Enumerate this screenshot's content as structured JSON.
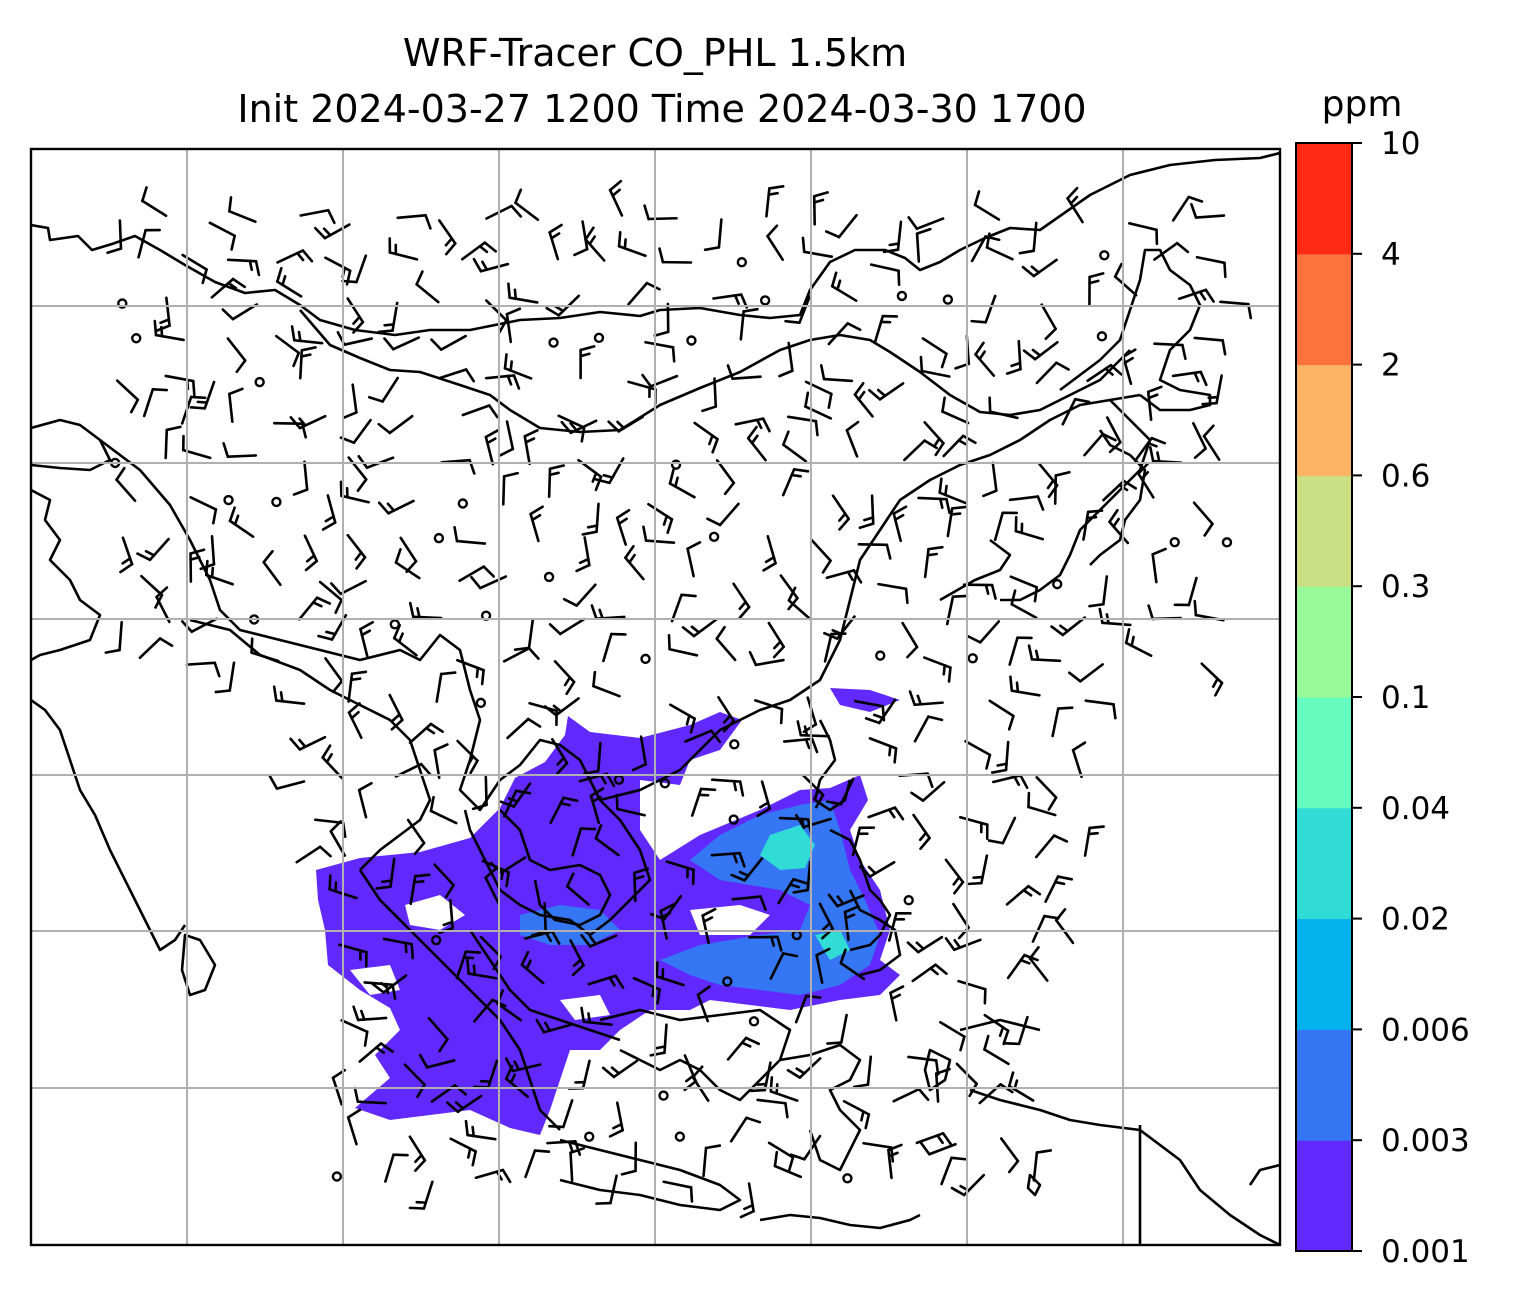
{
  "title": {
    "line1": "WRF-Tracer CO_PHL 1.5km",
    "line2": "Init 2024-03-27 1200 Time 2024-03-30 1700"
  },
  "colorbar": {
    "unit": "ppm",
    "ticks": [
      "0.001",
      "0.003",
      "0.006",
      "0.02",
      "0.04",
      "0.1",
      "0.3",
      "0.6",
      "2",
      "4",
      "10"
    ],
    "colors": [
      "#6229ff",
      "#3476f3",
      "#04b2ee",
      "#31dcd6",
      "#66fcbf",
      "#99fa9a",
      "#cbdf84",
      "#feb264",
      "#fe723d",
      "#ff2914"
    ]
  },
  "map": {
    "grid": "on",
    "grid_color": "#b0b0b0",
    "coastline_color": "#000000",
    "wind_barb_color": "#000000",
    "plume_fill_color": "#6229ff",
    "plume_core_color": "#3476f3",
    "plume_peak_color": "#31dcd6"
  }
}
